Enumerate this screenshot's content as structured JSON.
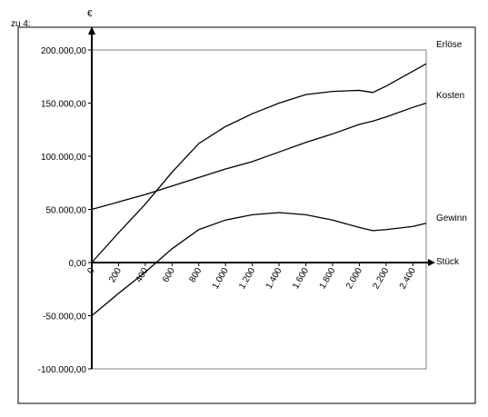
{
  "chart_data": {
    "type": "line",
    "title": "zu 4:",
    "y_label": "€",
    "x_label": "Stück",
    "x": [
      0,
      200,
      400,
      600,
      800,
      1000,
      1200,
      1400,
      1600,
      1800,
      2000,
      2100,
      2200,
      2400,
      2500
    ],
    "series": [
      {
        "name": "Erlöse",
        "color": "#000000",
        "values": [
          0,
          28000,
          55000,
          85000,
          112000,
          128000,
          140000,
          150000,
          158000,
          161000,
          162000,
          160000,
          166000,
          180000,
          187000
        ]
      },
      {
        "name": "Kosten",
        "color": "#000000",
        "values": [
          50000,
          57000,
          64000,
          72000,
          80000,
          88000,
          95000,
          104000,
          113000,
          121000,
          130000,
          133000,
          137000,
          146000,
          150000
        ]
      },
      {
        "name": "Gewinn",
        "color": "#000000",
        "values": [
          -50000,
          -29000,
          -9000,
          13000,
          31000,
          40000,
          45000,
          47000,
          45000,
          40000,
          33000,
          30000,
          31000,
          34000,
          37000
        ]
      }
    ],
    "xlim": [
      0,
      2500
    ],
    "xticks": [
      0,
      200,
      400,
      600,
      800,
      {
        "value": 1000,
        "label": "1.000"
      },
      {
        "value": 1200,
        "label": "1.200"
      },
      {
        "value": 1400,
        "label": "1.400"
      },
      {
        "value": 1600,
        "label": "1.600"
      },
      {
        "value": 1800,
        "label": "1.800"
      },
      {
        "value": 2000,
        "label": "2.000"
      },
      {
        "value": 2200,
        "label": "2.200"
      },
      {
        "value": 2400,
        "label": "2.400"
      }
    ],
    "ylim": [
      -100000,
      200000
    ],
    "yticks": [
      {
        "value": -100000,
        "label": "-100.000,00"
      },
      {
        "value": -50000,
        "label": "-50.000,00"
      },
      {
        "value": 0,
        "label": "0,00"
      },
      {
        "value": 50000,
        "label": "50.000,00"
      },
      {
        "value": 100000,
        "label": "100.000,00"
      },
      {
        "value": 150000,
        "label": "150.000,00"
      },
      {
        "value": 200000,
        "label": "200.000,00"
      }
    ]
  }
}
